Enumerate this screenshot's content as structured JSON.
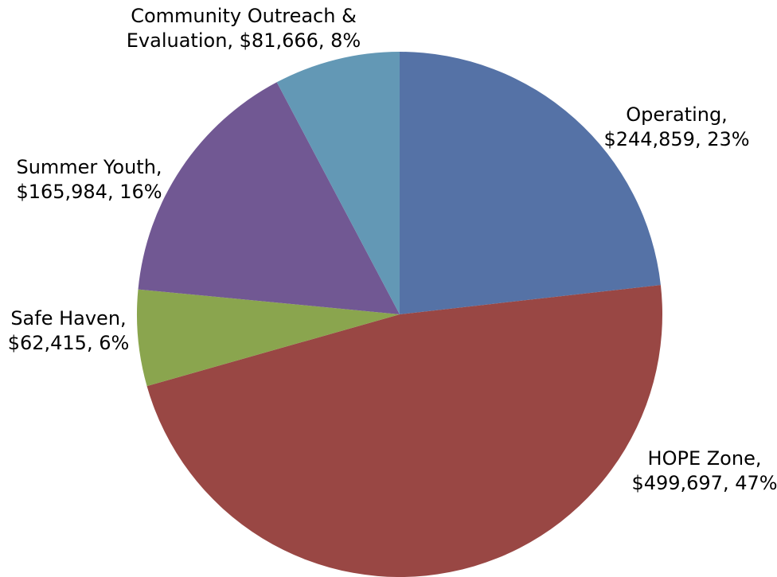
{
  "chart_data": {
    "type": "pie",
    "title": "",
    "slices": [
      {
        "category": "Operating",
        "value": 244859,
        "percent": 23,
        "color": "#5572a6",
        "label_lines": [
          "Operating,",
          "$244,859, 23%"
        ]
      },
      {
        "category": "HOPE Zone",
        "value": 499697,
        "percent": 47,
        "color": "#994744",
        "label_lines": [
          "HOPE Zone,",
          "$499,697, 47%"
        ]
      },
      {
        "category": "Safe Haven",
        "value": 62415,
        "percent": 6,
        "color": "#8aa54e",
        "label_lines": [
          "Safe Haven,",
          "$62,415, 6%"
        ]
      },
      {
        "category": "Summer Youth",
        "value": 165984,
        "percent": 16,
        "color": "#715893",
        "label_lines": [
          "Summer Youth,",
          "$165,984, 16%"
        ]
      },
      {
        "category": "Community Outreach & Evaluation",
        "value": 81666,
        "percent": 8,
        "color": "#6398b5",
        "label_lines": [
          "Community Outreach &",
          "Evaluation, $81,666, 8%"
        ]
      }
    ],
    "legend": "none",
    "data_labels": "outside"
  }
}
